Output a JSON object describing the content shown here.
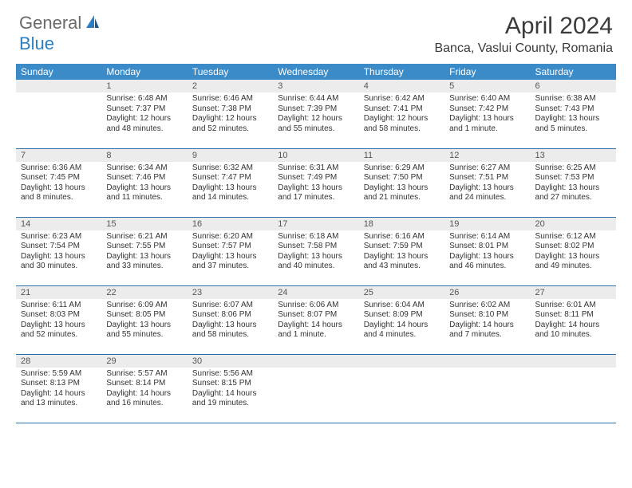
{
  "logo": {
    "general": "General",
    "blue": "Blue"
  },
  "title": "April 2024",
  "location": "Banca, Vaslui County, Romania",
  "dayHeaders": [
    "Sunday",
    "Monday",
    "Tuesday",
    "Wednesday",
    "Thursday",
    "Friday",
    "Saturday"
  ],
  "colors": {
    "headerBg": "#3b8bc8",
    "headerText": "#ffffff",
    "dayNumBg": "#ececec",
    "rowBorder": "#2c6ea5",
    "logoBlue": "#2b7ec2",
    "logoGray": "#6a6a6a"
  },
  "weeks": [
    [
      {
        "n": "",
        "sr": "",
        "ss": "",
        "dl": ""
      },
      {
        "n": "1",
        "sr": "Sunrise: 6:48 AM",
        "ss": "Sunset: 7:37 PM",
        "dl": "Daylight: 12 hours and 48 minutes."
      },
      {
        "n": "2",
        "sr": "Sunrise: 6:46 AM",
        "ss": "Sunset: 7:38 PM",
        "dl": "Daylight: 12 hours and 52 minutes."
      },
      {
        "n": "3",
        "sr": "Sunrise: 6:44 AM",
        "ss": "Sunset: 7:39 PM",
        "dl": "Daylight: 12 hours and 55 minutes."
      },
      {
        "n": "4",
        "sr": "Sunrise: 6:42 AM",
        "ss": "Sunset: 7:41 PM",
        "dl": "Daylight: 12 hours and 58 minutes."
      },
      {
        "n": "5",
        "sr": "Sunrise: 6:40 AM",
        "ss": "Sunset: 7:42 PM",
        "dl": "Daylight: 13 hours and 1 minute."
      },
      {
        "n": "6",
        "sr": "Sunrise: 6:38 AM",
        "ss": "Sunset: 7:43 PM",
        "dl": "Daylight: 13 hours and 5 minutes."
      }
    ],
    [
      {
        "n": "7",
        "sr": "Sunrise: 6:36 AM",
        "ss": "Sunset: 7:45 PM",
        "dl": "Daylight: 13 hours and 8 minutes."
      },
      {
        "n": "8",
        "sr": "Sunrise: 6:34 AM",
        "ss": "Sunset: 7:46 PM",
        "dl": "Daylight: 13 hours and 11 minutes."
      },
      {
        "n": "9",
        "sr": "Sunrise: 6:32 AM",
        "ss": "Sunset: 7:47 PM",
        "dl": "Daylight: 13 hours and 14 minutes."
      },
      {
        "n": "10",
        "sr": "Sunrise: 6:31 AM",
        "ss": "Sunset: 7:49 PM",
        "dl": "Daylight: 13 hours and 17 minutes."
      },
      {
        "n": "11",
        "sr": "Sunrise: 6:29 AM",
        "ss": "Sunset: 7:50 PM",
        "dl": "Daylight: 13 hours and 21 minutes."
      },
      {
        "n": "12",
        "sr": "Sunrise: 6:27 AM",
        "ss": "Sunset: 7:51 PM",
        "dl": "Daylight: 13 hours and 24 minutes."
      },
      {
        "n": "13",
        "sr": "Sunrise: 6:25 AM",
        "ss": "Sunset: 7:53 PM",
        "dl": "Daylight: 13 hours and 27 minutes."
      }
    ],
    [
      {
        "n": "14",
        "sr": "Sunrise: 6:23 AM",
        "ss": "Sunset: 7:54 PM",
        "dl": "Daylight: 13 hours and 30 minutes."
      },
      {
        "n": "15",
        "sr": "Sunrise: 6:21 AM",
        "ss": "Sunset: 7:55 PM",
        "dl": "Daylight: 13 hours and 33 minutes."
      },
      {
        "n": "16",
        "sr": "Sunrise: 6:20 AM",
        "ss": "Sunset: 7:57 PM",
        "dl": "Daylight: 13 hours and 37 minutes."
      },
      {
        "n": "17",
        "sr": "Sunrise: 6:18 AM",
        "ss": "Sunset: 7:58 PM",
        "dl": "Daylight: 13 hours and 40 minutes."
      },
      {
        "n": "18",
        "sr": "Sunrise: 6:16 AM",
        "ss": "Sunset: 7:59 PM",
        "dl": "Daylight: 13 hours and 43 minutes."
      },
      {
        "n": "19",
        "sr": "Sunrise: 6:14 AM",
        "ss": "Sunset: 8:01 PM",
        "dl": "Daylight: 13 hours and 46 minutes."
      },
      {
        "n": "20",
        "sr": "Sunrise: 6:12 AM",
        "ss": "Sunset: 8:02 PM",
        "dl": "Daylight: 13 hours and 49 minutes."
      }
    ],
    [
      {
        "n": "21",
        "sr": "Sunrise: 6:11 AM",
        "ss": "Sunset: 8:03 PM",
        "dl": "Daylight: 13 hours and 52 minutes."
      },
      {
        "n": "22",
        "sr": "Sunrise: 6:09 AM",
        "ss": "Sunset: 8:05 PM",
        "dl": "Daylight: 13 hours and 55 minutes."
      },
      {
        "n": "23",
        "sr": "Sunrise: 6:07 AM",
        "ss": "Sunset: 8:06 PM",
        "dl": "Daylight: 13 hours and 58 minutes."
      },
      {
        "n": "24",
        "sr": "Sunrise: 6:06 AM",
        "ss": "Sunset: 8:07 PM",
        "dl": "Daylight: 14 hours and 1 minute."
      },
      {
        "n": "25",
        "sr": "Sunrise: 6:04 AM",
        "ss": "Sunset: 8:09 PM",
        "dl": "Daylight: 14 hours and 4 minutes."
      },
      {
        "n": "26",
        "sr": "Sunrise: 6:02 AM",
        "ss": "Sunset: 8:10 PM",
        "dl": "Daylight: 14 hours and 7 minutes."
      },
      {
        "n": "27",
        "sr": "Sunrise: 6:01 AM",
        "ss": "Sunset: 8:11 PM",
        "dl": "Daylight: 14 hours and 10 minutes."
      }
    ],
    [
      {
        "n": "28",
        "sr": "Sunrise: 5:59 AM",
        "ss": "Sunset: 8:13 PM",
        "dl": "Daylight: 14 hours and 13 minutes."
      },
      {
        "n": "29",
        "sr": "Sunrise: 5:57 AM",
        "ss": "Sunset: 8:14 PM",
        "dl": "Daylight: 14 hours and 16 minutes."
      },
      {
        "n": "30",
        "sr": "Sunrise: 5:56 AM",
        "ss": "Sunset: 8:15 PM",
        "dl": "Daylight: 14 hours and 19 minutes."
      },
      {
        "n": "",
        "sr": "",
        "ss": "",
        "dl": ""
      },
      {
        "n": "",
        "sr": "",
        "ss": "",
        "dl": ""
      },
      {
        "n": "",
        "sr": "",
        "ss": "",
        "dl": ""
      },
      {
        "n": "",
        "sr": "",
        "ss": "",
        "dl": ""
      }
    ]
  ]
}
